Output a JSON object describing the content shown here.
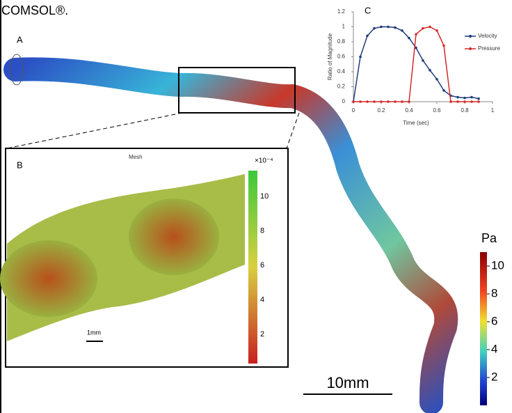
{
  "caption": "COMSOL®.",
  "panels": {
    "a": "A",
    "b": "B",
    "c": "C"
  },
  "chart_data": {
    "type": "line",
    "x": [
      0,
      0.05,
      0.1,
      0.15,
      0.2,
      0.25,
      0.3,
      0.35,
      0.4,
      0.45,
      0.5,
      0.55,
      0.6,
      0.65,
      0.7,
      0.75,
      0.8,
      0.85,
      0.9
    ],
    "series": [
      {
        "name": "Velocity",
        "color": "#1f3a7a",
        "values": [
          0,
          0.6,
          0.88,
          0.98,
          1.0,
          1.0,
          0.99,
          0.95,
          0.85,
          0.72,
          0.55,
          0.42,
          0.3,
          0.15,
          0.08,
          0.06,
          0.05,
          0.06,
          0.04
        ]
      },
      {
        "name": "Pressure",
        "color": "#d42a2a",
        "values": [
          0,
          0,
          0,
          0,
          0,
          0,
          0,
          0,
          0,
          0.9,
          0.98,
          1.0,
          0.95,
          0.75,
          0,
          0,
          0,
          0,
          0
        ]
      }
    ],
    "xlabel": "Time (sec)",
    "ylabel": "Ratio of Magnitude",
    "xlim": [
      0,
      1
    ],
    "ylim": [
      0,
      1.2
    ],
    "xticks": [
      0,
      0.2,
      0.4,
      0.6,
      0.8,
      1
    ],
    "yticks": [
      0,
      0.2,
      0.4,
      0.6,
      0.8,
      1,
      1.2
    ],
    "legend": "right"
  },
  "inset": {
    "title": "Mesh",
    "exponent": "×10⁻⁴",
    "ticks": [
      10,
      8,
      6,
      4,
      2
    ],
    "scale": "1mm"
  },
  "colorbar": {
    "unit": "Pa",
    "ticks": [
      10,
      8,
      6,
      4,
      2
    ]
  },
  "scale_bar": "10mm"
}
